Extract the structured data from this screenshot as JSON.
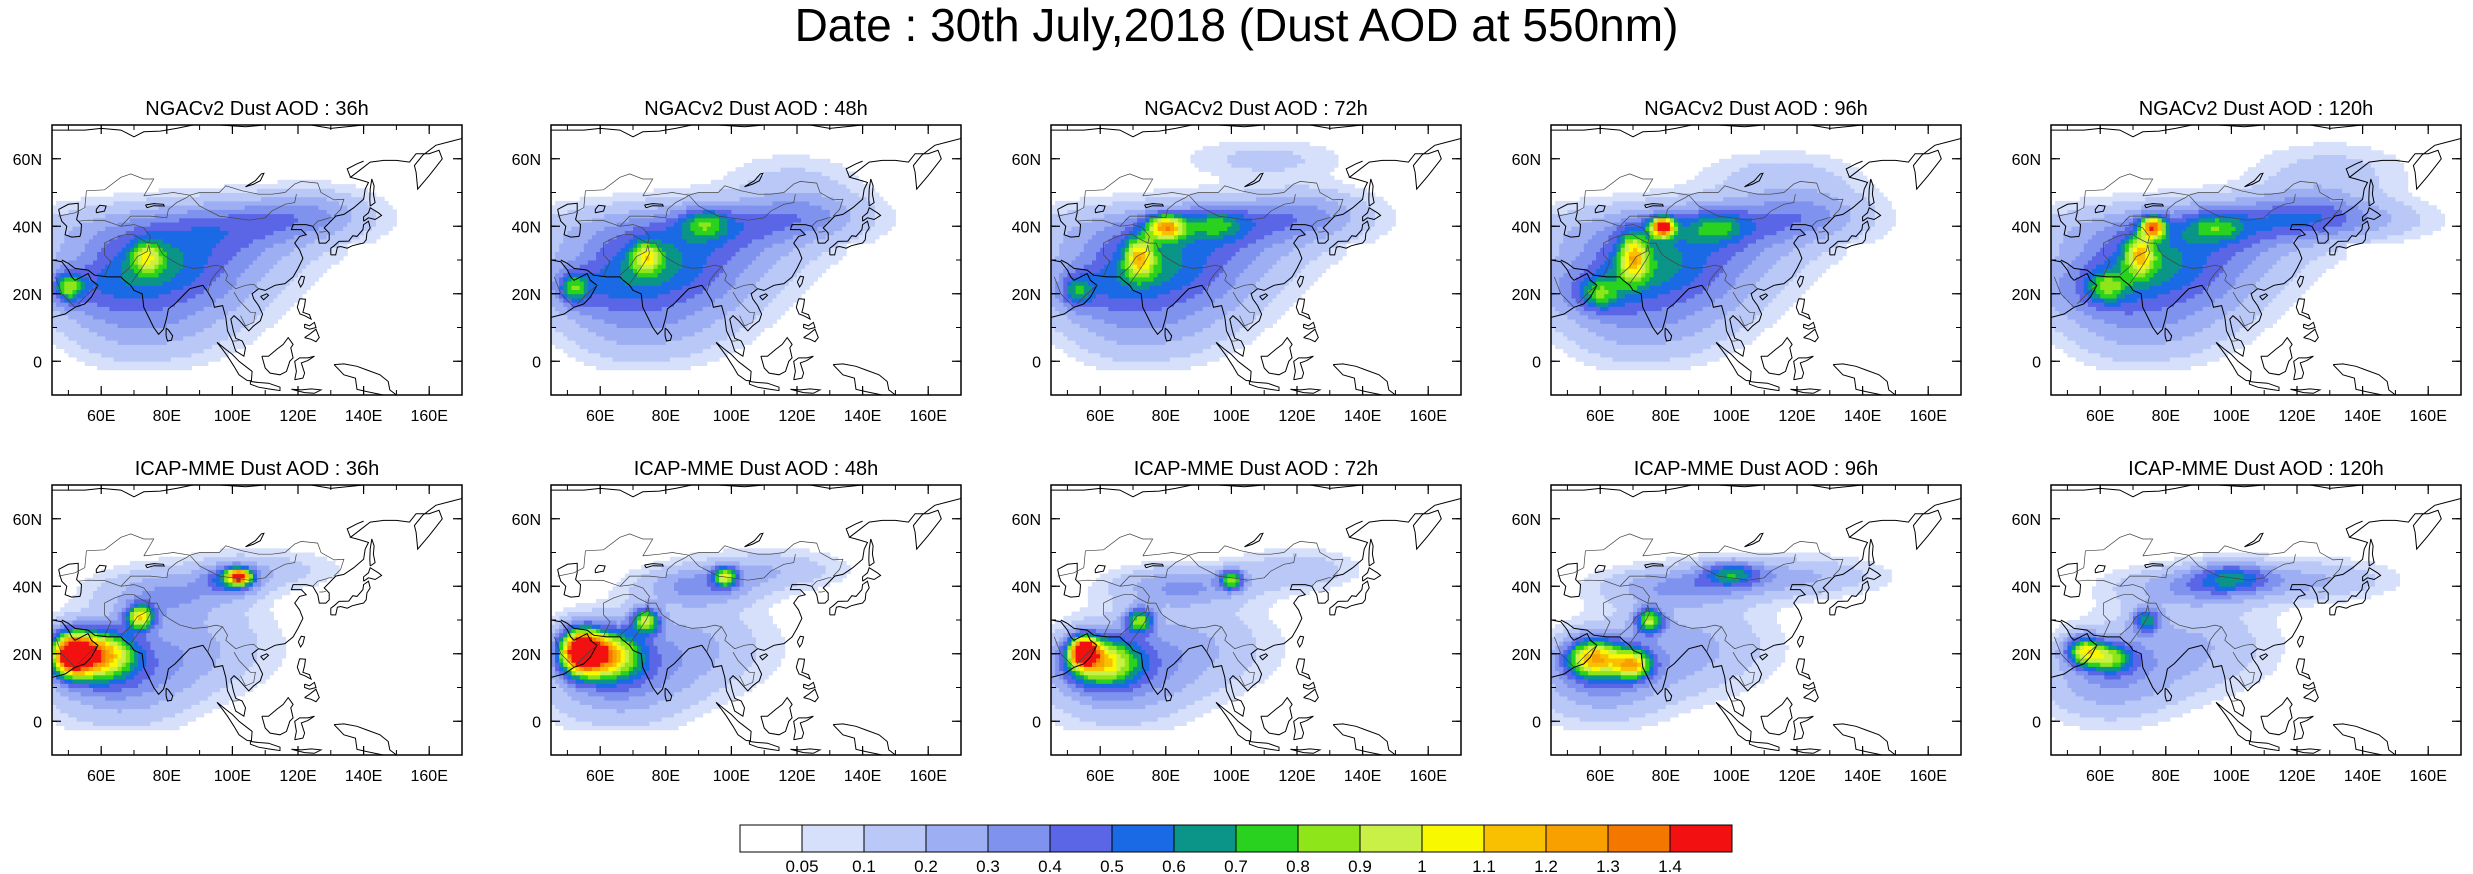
{
  "title": "Date : 30th July,2018 (Dust AOD at 550nm)",
  "rows": [
    {
      "model": "NGACv2",
      "panels": [
        {
          "title": "NGACv2 Dust AOD : 36h",
          "lead": "36h"
        },
        {
          "title": "NGACv2 Dust AOD : 48h",
          "lead": "48h"
        },
        {
          "title": "NGACv2 Dust AOD : 72h",
          "lead": "72h"
        },
        {
          "title": "NGACv2 Dust AOD : 96h",
          "lead": "96h"
        },
        {
          "title": "NGACv2 Dust AOD : 120h",
          "lead": "120h"
        }
      ]
    },
    {
      "model": "ICAP-MME",
      "panels": [
        {
          "title": "ICAP-MME Dust AOD : 36h",
          "lead": "36h"
        },
        {
          "title": "ICAP-MME Dust AOD : 48h",
          "lead": "48h"
        },
        {
          "title": "ICAP-MME Dust AOD : 72h",
          "lead": "72h"
        },
        {
          "title": "ICAP-MME Dust AOD : 96h",
          "lead": "96h"
        },
        {
          "title": "ICAP-MME Dust AOD : 120h",
          "lead": "120h"
        }
      ]
    }
  ],
  "map_extent": {
    "lon": [
      45,
      170
    ],
    "lat": [
      -10,
      70
    ]
  },
  "lat_ticks": [
    {
      "value": 0,
      "label": "0"
    },
    {
      "value": 20,
      "label": "20N"
    },
    {
      "value": 40,
      "label": "40N"
    },
    {
      "value": 60,
      "label": "60N"
    }
  ],
  "lon_ticks": [
    {
      "value": 60,
      "label": "60E"
    },
    {
      "value": 80,
      "label": "80E"
    },
    {
      "value": 100,
      "label": "100E"
    },
    {
      "value": 120,
      "label": "120E"
    },
    {
      "value": 140,
      "label": "140E"
    },
    {
      "value": 160,
      "label": "160E"
    }
  ],
  "colorbar": {
    "labels": [
      "0.05",
      "0.1",
      "0.2",
      "0.3",
      "0.4",
      "0.5",
      "0.6",
      "0.7",
      "0.8",
      "0.9",
      "1",
      "1.1",
      "1.2",
      "1.3",
      "1.4"
    ],
    "colors": [
      "#ffffff",
      "#d6e0fb",
      "#b9c8f6",
      "#9daff2",
      "#7f93ee",
      "#5a66e6",
      "#1a6ae6",
      "#0b9488",
      "#28d21e",
      "#8ee61a",
      "#c8f046",
      "#f8f800",
      "#f8c000",
      "#f8a000",
      "#f47800",
      "#f21010"
    ]
  }
}
